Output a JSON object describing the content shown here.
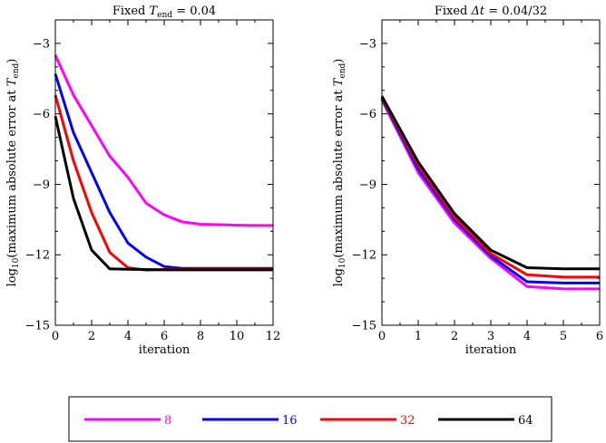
{
  "colors": {
    "magenta": "#ff00ff",
    "blue": "#0000ff",
    "red": "#ff0000",
    "black": "#000000"
  },
  "legend": {
    "placement": "bottom",
    "entries": [
      {
        "label": "8",
        "color": "#ff00ff"
      },
      {
        "label": "16",
        "color": "#0000ff"
      },
      {
        "label": "32",
        "color": "#ff0000"
      },
      {
        "label": "64",
        "color": "#000000"
      }
    ]
  },
  "chart_data": [
    {
      "type": "line",
      "title_prefix": "Fixed ",
      "title_var": "T",
      "title_sub": "end",
      "title_suffix": " = 0.04",
      "xlabel": "iteration",
      "ylabel_prefix": "log",
      "ylabel_sub": "10",
      "ylabel_mid": "(maximum absolute error at ",
      "ylabel_var": "T",
      "ylabel_var_sub": "end",
      "ylabel_suffix": ")",
      "xlim": [
        0,
        12
      ],
      "ylim": [
        -15,
        -2
      ],
      "xticks": [
        0,
        2,
        4,
        6,
        8,
        10,
        12
      ],
      "xtick_labels": [
        "0",
        "2",
        "4",
        "6",
        "8",
        "10",
        "12"
      ],
      "yticks": [
        -3,
        -6,
        -9,
        -12,
        -15
      ],
      "ytick_labels": [
        "−3",
        "−6",
        "−9",
        "−12",
        "−15"
      ],
      "grid": false,
      "x": [
        0,
        1,
        2,
        3,
        4,
        5,
        6,
        7,
        8,
        9,
        10,
        11,
        12
      ],
      "series": [
        {
          "name": "8",
          "color": "#ff00ff",
          "values": [
            -3.5,
            -5.2,
            -6.5,
            -7.8,
            -8.7,
            -9.8,
            -10.3,
            -10.6,
            -10.7,
            -10.72,
            -10.74,
            -10.75,
            -10.75
          ]
        },
        {
          "name": "16",
          "color": "#0000ff",
          "values": [
            -4.3,
            -6.8,
            -8.5,
            -10.2,
            -11.5,
            -12.1,
            -12.5,
            -12.58,
            -12.58,
            -12.58,
            -12.58,
            -12.58,
            -12.58
          ]
        },
        {
          "name": "32",
          "color": "#ff0000",
          "values": [
            -5.2,
            -8.0,
            -10.2,
            -11.9,
            -12.55,
            -12.65,
            -12.63,
            -12.62,
            -12.62,
            -12.62,
            -12.62,
            -12.62,
            -12.62
          ]
        },
        {
          "name": "64",
          "color": "#000000",
          "values": [
            -6.1,
            -9.6,
            -11.8,
            -12.6,
            -12.62,
            -12.63,
            -12.64,
            -12.64,
            -12.64,
            -12.64,
            -12.64,
            -12.64,
            -12.64
          ]
        }
      ]
    },
    {
      "type": "line",
      "title_prefix": "Fixed ",
      "title_var": "Δt",
      "title_sub": "",
      "title_suffix": " = 0.04/32",
      "xlabel": "iteration",
      "ylabel_prefix": "log",
      "ylabel_sub": "10",
      "ylabel_mid": "(maximum absolute error at ",
      "ylabel_var": "T",
      "ylabel_var_sub": "end",
      "ylabel_suffix": ")",
      "xlim": [
        0,
        6
      ],
      "ylim": [
        -15,
        -2
      ],
      "xticks": [
        0,
        1,
        2,
        3,
        4,
        5,
        6
      ],
      "xtick_labels": [
        "0",
        "1",
        "2",
        "3",
        "4",
        "5",
        "6"
      ],
      "yticks": [
        -3,
        -6,
        -9,
        -12,
        -15
      ],
      "ytick_labels": [
        "−3",
        "−6",
        "−9",
        "−12",
        "−15"
      ],
      "grid": false,
      "x": [
        0,
        1,
        2,
        3,
        4,
        5,
        6
      ],
      "series": [
        {
          "name": "8",
          "color": "#ff00ff",
          "values": [
            -5.4,
            -8.5,
            -10.65,
            -12.15,
            -13.35,
            -13.45,
            -13.45
          ]
        },
        {
          "name": "16",
          "color": "#0000ff",
          "values": [
            -5.35,
            -8.35,
            -10.5,
            -12.05,
            -13.15,
            -13.2,
            -13.2
          ]
        },
        {
          "name": "32",
          "color": "#ff0000",
          "values": [
            -5.3,
            -8.2,
            -10.4,
            -11.95,
            -12.85,
            -12.95,
            -12.95
          ]
        },
        {
          "name": "64",
          "color": "#000000",
          "values": [
            -5.25,
            -8.05,
            -10.25,
            -11.8,
            -12.55,
            -12.6,
            -12.6
          ]
        }
      ]
    }
  ]
}
